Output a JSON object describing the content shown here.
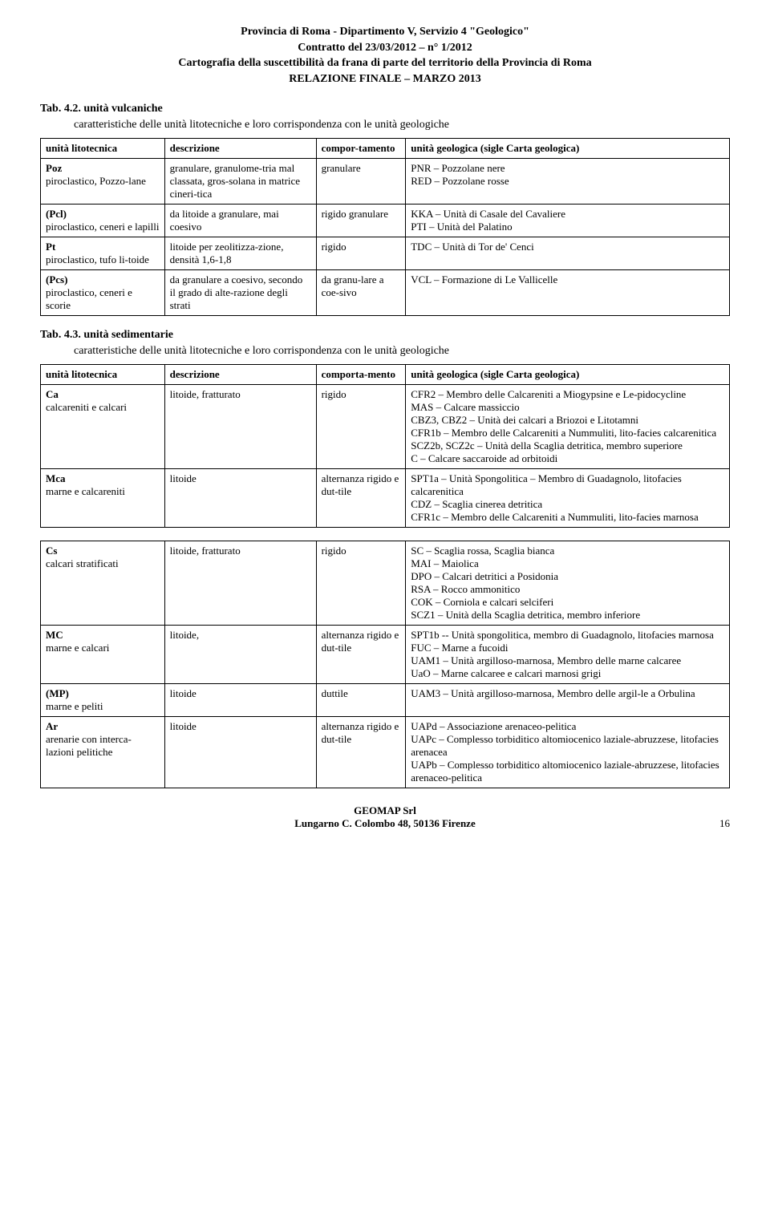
{
  "header": {
    "line1": "Provincia di Roma - Dipartimento V, Servizio 4 \"Geologico\"",
    "line2": "Contratto del 23/03/2012 – n° 1/2012",
    "line3": "Cartografia della suscettibilità da frana di parte del territorio della Provincia di Roma",
    "line4": "RELAZIONE FINALE – MARZO 2013"
  },
  "tab42": {
    "num": "Tab. 4.2.",
    "title": "unità vulcaniche",
    "subtitle": "caratteristiche delle unità litotecniche e loro corrispondenza con le unità geologiche",
    "headers": {
      "h1": "unità litotecnica",
      "h2": "descrizione",
      "h3": "compor-tamento",
      "h4": "unità geologica (sigle Carta geologica)"
    },
    "rows": [
      {
        "c1a": "Poz",
        "c1b": "piroclastico, Pozzo-lane",
        "c2": "granulare, granulome-tria mal classata, gros-solana in matrice cineri-tica",
        "c3": "granulare",
        "c4": "PNR – Pozzolane nere\nRED – Pozzolane rosse"
      },
      {
        "c1a": "(Pcl)",
        "c1b": "piroclastico, ceneri e lapilli",
        "c2": "da litoide a granulare, mai coesivo",
        "c3": "rigido granulare",
        "c4": "KKA – Unità di Casale del Cavaliere\nPTI – Unità del Palatino"
      },
      {
        "c1a": "Pt",
        "c1b": "piroclastico, tufo li-toide",
        "c2": "litoide per zeolitizza-zione, densità 1,6-1,8",
        "c3": "rigido",
        "c4": "TDC – Unità di Tor de' Cenci"
      },
      {
        "c1a": "(Pcs)",
        "c1b": "piroclastico, ceneri e scorie",
        "c2": "da granulare a coesivo, secondo il grado di alte-razione degli strati",
        "c3": "da granu-lare a coe-sivo",
        "c4": "VCL – Formazione di Le Vallicelle"
      }
    ]
  },
  "tab43": {
    "num": "Tab. 4.3.",
    "title": "unità sedimentarie",
    "subtitle": "caratteristiche delle unità litotecniche e loro corrispondenza con le unità geologiche",
    "headers": {
      "h1": "unità litotecnica",
      "h2": "descrizione",
      "h3": "comporta-mento",
      "h4": "unità geologica (sigle Carta geologica)"
    },
    "rows1": [
      {
        "c1a": "Ca",
        "c1b": "calcareniti e calcari",
        "c2": "litoide, fratturato",
        "c3": "rigido",
        "c4": "CFR2 – Membro delle Calcareniti a Miogypsine e Le-pidocycline\nMAS – Calcare massiccio\nCBZ3, CBZ2 – Unità dei calcari a Briozoi e Litotamni\nCFR1b – Membro delle Calcareniti a Nummuliti, lito-facies calcarenitica\nSCZ2b, SCZ2c – Unità della Scaglia detritica, membro superiore\nC – Calcare saccaroide ad orbitoidi"
      },
      {
        "c1a": "Mca",
        "c1b": "marne e calcareniti",
        "c2": "litoide",
        "c3": "alternanza rigido e dut-tile",
        "c4": "SPT1a – Unità Spongolitica – Membro di Guadagnolo, litofacies calcarenitica\nCDZ – Scaglia cinerea detritica\nCFR1c – Membro delle Calcareniti a Nummuliti, lito-facies marnosa"
      }
    ],
    "rows2": [
      {
        "c1a": "Cs",
        "c1b": "calcari stratificati",
        "c2": "litoide, fratturato",
        "c3": "rigido",
        "c4": "SC – Scaglia rossa, Scaglia bianca\nMAI – Maiolica\nDPO – Calcari detritici a Posidonia\nRSA – Rocco ammonitico\nCOK – Corniola e calcari selciferi\nSCZ1 – Unità della Scaglia detritica, membro inferiore"
      },
      {
        "c1a": "MC",
        "c1b": "marne e calcari",
        "c2": "litoide,",
        "c3": "alternanza rigido e dut-tile",
        "c4": "SPT1b -- Unità spongolitica, membro di Guadagnolo, litofacies marnosa\nFUC – Marne a fucoidi\nUAM1 – Unità argilloso-marnosa, Membro delle marne calcaree\nUaO – Marne calcaree e calcari marnosi grigi"
      },
      {
        "c1a": "(MP)",
        "c1b": "marne e peliti",
        "c2": "litoide",
        "c3": "duttile",
        "c4": "UAM3 – Unità argilloso-marnosa, Membro delle argil-le a Orbulina"
      },
      {
        "c1a": "Ar",
        "c1b": "arenarie con interca-lazioni pelitiche",
        "c2": "litoide",
        "c3": "alternanza rigido e dut-tile",
        "c4": "UAPd – Associazione arenaceo-pelitica\nUAPc – Complesso torbiditico altomiocenico laziale-abruzzese, litofacies arenacea\nUAPb – Complesso torbiditico altomiocenico laziale-abruzzese, litofacies arenaceo-pelitica"
      }
    ]
  },
  "footer": {
    "l1": "GEOMAP Srl",
    "l2": "Lungarno C. Colombo 48, 50136 Firenze",
    "page": "16"
  }
}
